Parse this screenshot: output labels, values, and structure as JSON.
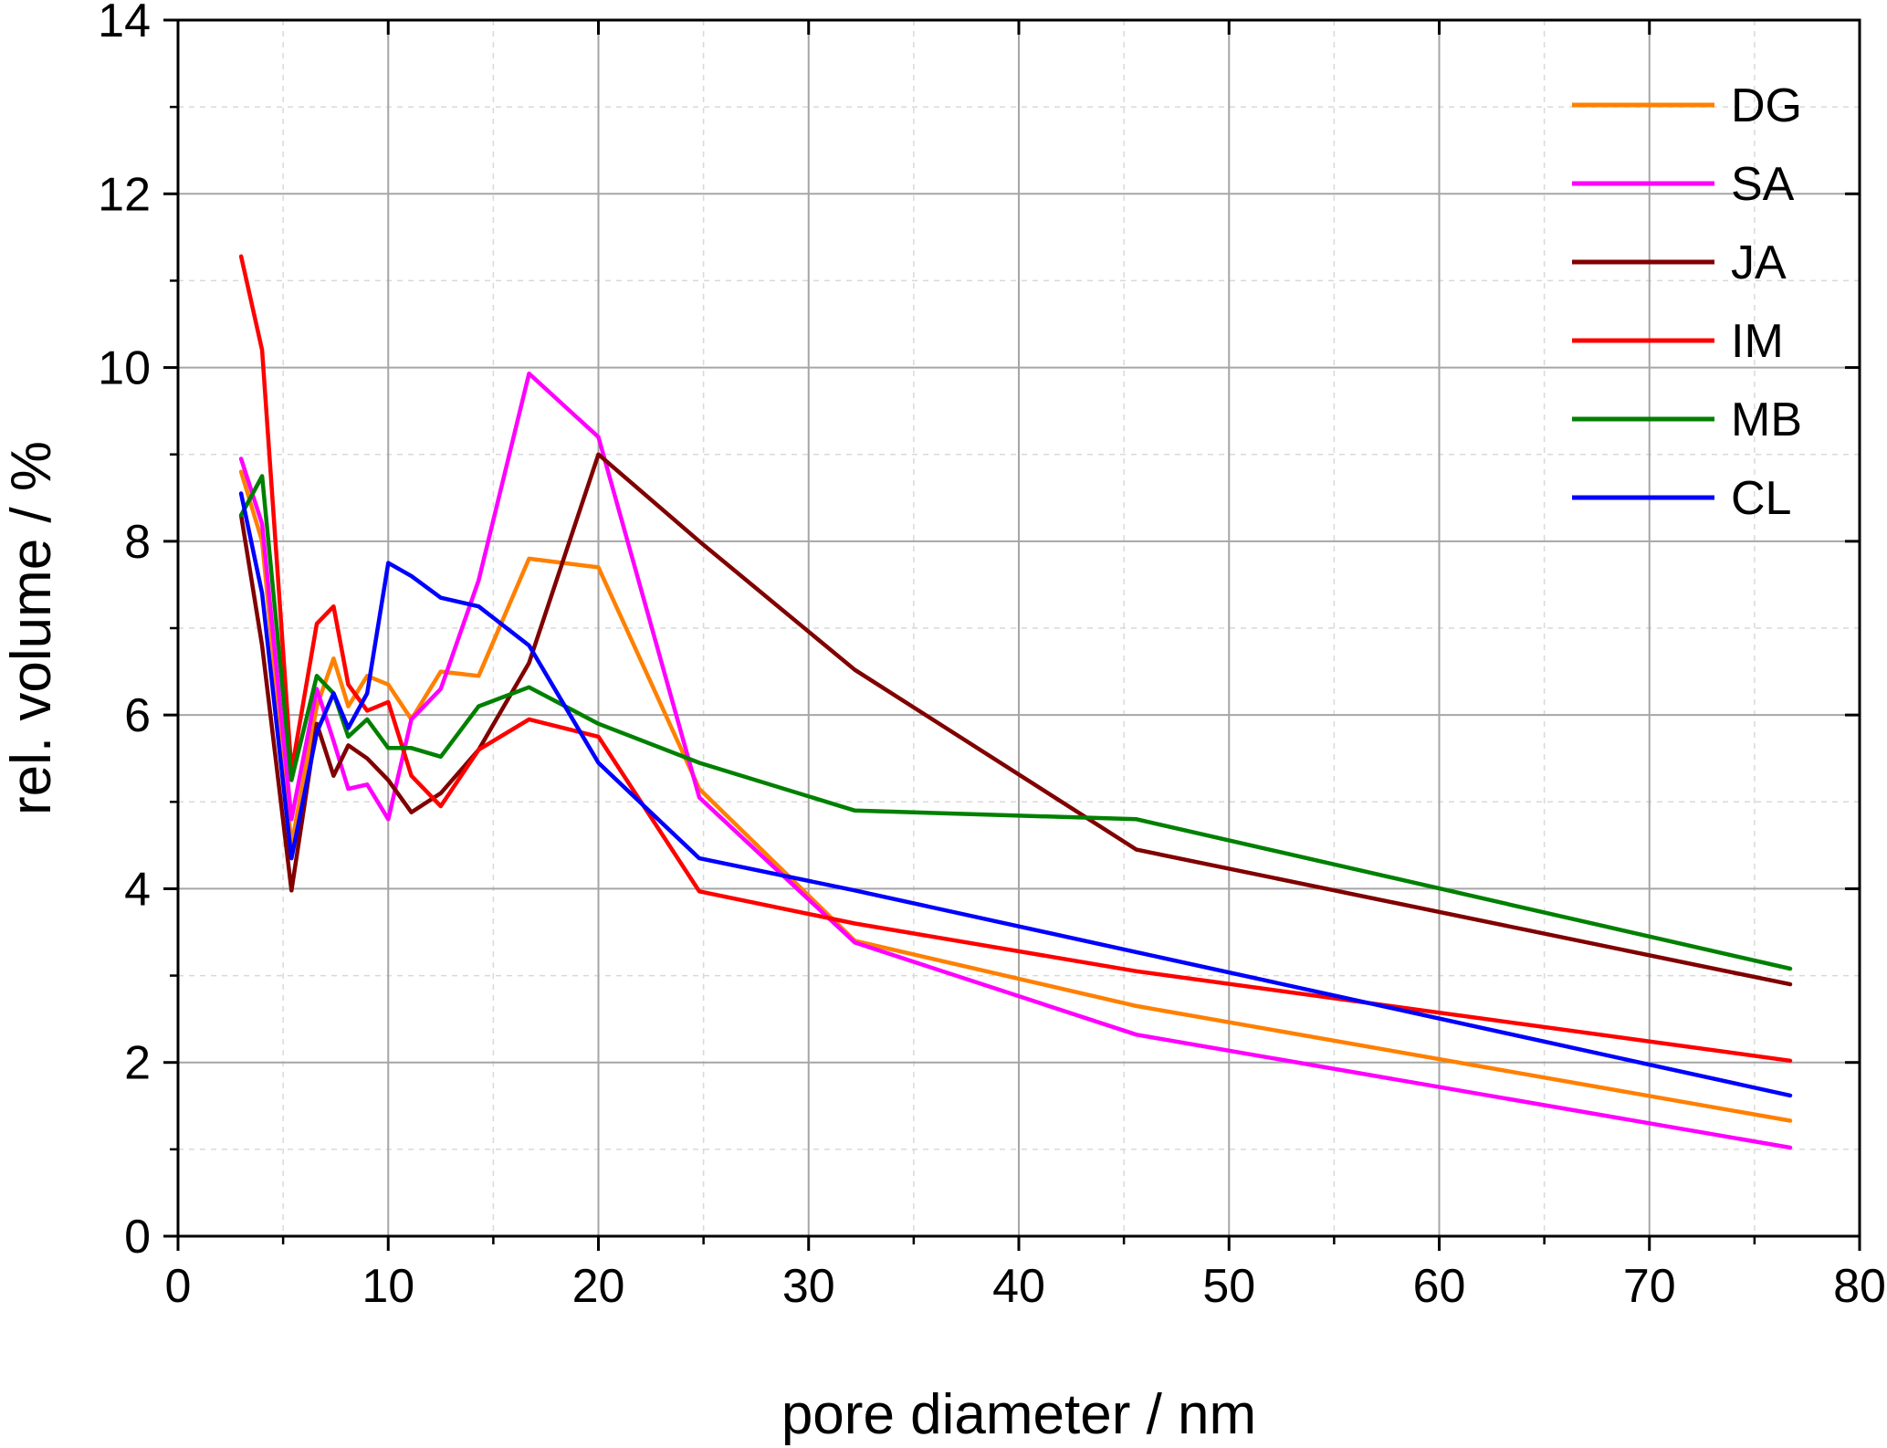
{
  "chart_data": {
    "type": "line",
    "title": "",
    "xlabel": "pore diameter / nm",
    "ylabel": "rel. volume / %",
    "xlim": [
      0,
      80
    ],
    "ylim": [
      0,
      14
    ],
    "xticks": [
      0,
      10,
      20,
      30,
      40,
      50,
      60,
      70,
      80
    ],
    "yticks": [
      0,
      2,
      4,
      6,
      8,
      10,
      12,
      14
    ],
    "grid": true,
    "legend_position": "top-right",
    "series": [
      {
        "name": "DG",
        "color": "#FF8000",
        "x": [
          3.0,
          4.0,
          5.4,
          6.6,
          7.4,
          8.1,
          9.0,
          10.0,
          11.1,
          12.5,
          14.3,
          16.7,
          20.0,
          24.8,
          32.2,
          45.6,
          76.7
        ],
        "y": [
          8.8,
          8.0,
          4.5,
          6.1,
          6.65,
          6.1,
          6.45,
          6.35,
          5.95,
          6.5,
          6.45,
          7.8,
          7.7,
          5.15,
          3.4,
          2.65,
          1.33
        ]
      },
      {
        "name": "SA",
        "color": "#FF00FF",
        "x": [
          3.0,
          4.0,
          5.4,
          6.6,
          7.4,
          8.1,
          9.0,
          10.0,
          11.1,
          12.5,
          14.3,
          16.7,
          20.0,
          24.8,
          32.2,
          45.6,
          76.7
        ],
        "y": [
          8.95,
          8.2,
          4.8,
          6.3,
          5.7,
          5.15,
          5.2,
          4.8,
          5.95,
          6.3,
          7.55,
          9.93,
          9.2,
          5.05,
          3.38,
          2.32,
          1.02
        ]
      },
      {
        "name": "JA",
        "color": "#800000",
        "x": [
          3.0,
          4.0,
          5.4,
          6.6,
          7.4,
          8.1,
          9.0,
          10.0,
          11.1,
          12.5,
          14.3,
          16.7,
          20.0,
          24.8,
          32.2,
          45.6,
          76.7
        ],
        "y": [
          8.3,
          6.8,
          3.98,
          5.9,
          5.3,
          5.65,
          5.5,
          5.25,
          4.88,
          5.1,
          5.6,
          6.6,
          9.0,
          8.0,
          6.52,
          4.45,
          2.9
        ]
      },
      {
        "name": "IM",
        "color": "#FF0000",
        "x": [
          3.0,
          4.0,
          5.4,
          6.6,
          7.4,
          8.1,
          9.0,
          10.0,
          11.1,
          12.5,
          14.3,
          16.7,
          20.0,
          24.8,
          32.2,
          45.6,
          76.7
        ],
        "y": [
          11.28,
          10.2,
          5.35,
          7.05,
          7.25,
          6.35,
          6.05,
          6.15,
          5.3,
          4.95,
          5.6,
          5.95,
          5.75,
          3.97,
          3.6,
          3.05,
          2.02
        ]
      },
      {
        "name": "MB",
        "color": "#008000",
        "x": [
          3.0,
          4.0,
          5.4,
          6.6,
          7.4,
          8.1,
          9.0,
          10.0,
          11.1,
          12.5,
          14.3,
          16.7,
          20.0,
          24.8,
          32.2,
          45.6,
          76.7
        ],
        "y": [
          8.3,
          8.75,
          5.25,
          6.45,
          6.25,
          5.75,
          5.95,
          5.62,
          5.62,
          5.52,
          6.1,
          6.32,
          5.9,
          5.45,
          4.9,
          4.8,
          3.08
        ]
      },
      {
        "name": "CL",
        "color": "#0000FF",
        "x": [
          3.0,
          4.0,
          5.4,
          6.6,
          7.4,
          8.1,
          9.0,
          10.0,
          11.1,
          12.5,
          14.3,
          16.7,
          20.0,
          24.8,
          32.2,
          45.6,
          76.7
        ],
        "y": [
          8.55,
          7.4,
          4.35,
          5.8,
          6.25,
          5.85,
          6.25,
          7.75,
          7.6,
          7.35,
          7.25,
          6.8,
          5.45,
          4.35,
          3.98,
          3.27,
          1.62
        ]
      }
    ]
  }
}
